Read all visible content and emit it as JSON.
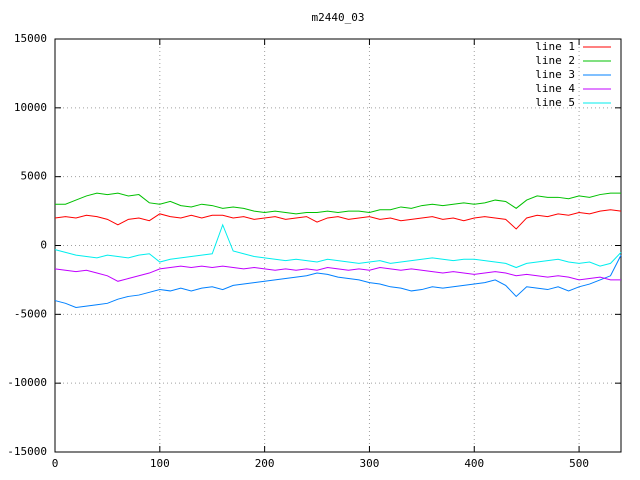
{
  "chart_data": {
    "type": "line",
    "title": "m2440_03",
    "x": [
      0,
      10,
      20,
      30,
      40,
      50,
      60,
      70,
      80,
      90,
      100,
      110,
      120,
      130,
      140,
      150,
      160,
      170,
      180,
      190,
      200,
      210,
      220,
      230,
      240,
      250,
      260,
      270,
      280,
      290,
      300,
      310,
      320,
      330,
      340,
      350,
      360,
      370,
      380,
      390,
      400,
      410,
      420,
      430,
      440,
      450,
      460,
      470,
      480,
      490,
      500,
      510,
      520,
      530,
      540
    ],
    "xlim": [
      0,
      540
    ],
    "xticks": [
      0,
      100,
      200,
      300,
      400,
      500
    ],
    "ylim": [
      -15000,
      15000
    ],
    "yticks": [
      -15000,
      -10000,
      -5000,
      0,
      5000,
      10000,
      15000
    ],
    "grid": true,
    "legend": "top-right",
    "series": [
      {
        "name": "line 1",
        "color": "#ff0000",
        "values": [
          2000,
          2100,
          2000,
          2200,
          2100,
          1900,
          1500,
          1900,
          2000,
          1800,
          2300,
          2100,
          2000,
          2200,
          2000,
          2200,
          2200,
          2000,
          2100,
          1900,
          2000,
          2100,
          1900,
          2000,
          2100,
          1700,
          2000,
          2100,
          1900,
          2000,
          2100,
          1900,
          2000,
          1800,
          1900,
          2000,
          2100,
          1900,
          2000,
          1800,
          2000,
          2100,
          2000,
          1900,
          1200,
          2000,
          2200,
          2100,
          2300,
          2200,
          2400,
          2300,
          2500,
          2600,
          2500
        ]
      },
      {
        "name": "line 2",
        "color": "#00c000",
        "values": [
          3000,
          3000,
          3300,
          3600,
          3800,
          3700,
          3800,
          3600,
          3700,
          3100,
          3000,
          3200,
          2900,
          2800,
          3000,
          2900,
          2700,
          2800,
          2700,
          2500,
          2400,
          2500,
          2400,
          2300,
          2400,
          2400,
          2500,
          2400,
          2500,
          2500,
          2400,
          2600,
          2600,
          2800,
          2700,
          2900,
          3000,
          2900,
          3000,
          3100,
          3000,
          3100,
          3300,
          3200,
          2700,
          3300,
          3600,
          3500,
          3500,
          3400,
          3600,
          3500,
          3700,
          3800,
          3800
        ]
      },
      {
        "name": "line 3",
        "color": "#0080ff",
        "values": [
          -4000,
          -4200,
          -4500,
          -4400,
          -4300,
          -4200,
          -3900,
          -3700,
          -3600,
          -3400,
          -3200,
          -3300,
          -3100,
          -3300,
          -3100,
          -3000,
          -3200,
          -2900,
          -2800,
          -2700,
          -2600,
          -2500,
          -2400,
          -2300,
          -2200,
          -2000,
          -2100,
          -2300,
          -2400,
          -2500,
          -2700,
          -2800,
          -3000,
          -3100,
          -3300,
          -3200,
          -3000,
          -3100,
          -3000,
          -2900,
          -2800,
          -2700,
          -2500,
          -2900,
          -3700,
          -3000,
          -3100,
          -3200,
          -3000,
          -3300,
          -3000,
          -2800,
          -2500,
          -2200,
          -700
        ]
      },
      {
        "name": "line 4",
        "color": "#c000ff",
        "values": [
          -1700,
          -1800,
          -1900,
          -1800,
          -2000,
          -2200,
          -2600,
          -2400,
          -2200,
          -2000,
          -1700,
          -1600,
          -1500,
          -1600,
          -1500,
          -1600,
          -1500,
          -1600,
          -1700,
          -1600,
          -1700,
          -1800,
          -1700,
          -1800,
          -1700,
          -1800,
          -1600,
          -1700,
          -1800,
          -1700,
          -1800,
          -1600,
          -1700,
          -1800,
          -1700,
          -1800,
          -1900,
          -2000,
          -1900,
          -2000,
          -2100,
          -2000,
          -1900,
          -2000,
          -2200,
          -2100,
          -2200,
          -2300,
          -2200,
          -2300,
          -2500,
          -2400,
          -2300,
          -2500,
          -2500
        ]
      },
      {
        "name": "line 5",
        "color": "#00eeee",
        "values": [
          -300,
          -500,
          -700,
          -800,
          -900,
          -700,
          -800,
          -900,
          -700,
          -600,
          -1200,
          -1000,
          -900,
          -800,
          -700,
          -600,
          1500,
          -400,
          -600,
          -800,
          -900,
          -1000,
          -1100,
          -1000,
          -1100,
          -1200,
          -1000,
          -1100,
          -1200,
          -1300,
          -1200,
          -1100,
          -1300,
          -1200,
          -1100,
          -1000,
          -900,
          -1000,
          -1100,
          -1000,
          -1000,
          -1100,
          -1200,
          -1300,
          -1600,
          -1300,
          -1200,
          -1100,
          -1000,
          -1200,
          -1300,
          -1200,
          -1500,
          -1300,
          -500
        ]
      }
    ]
  }
}
